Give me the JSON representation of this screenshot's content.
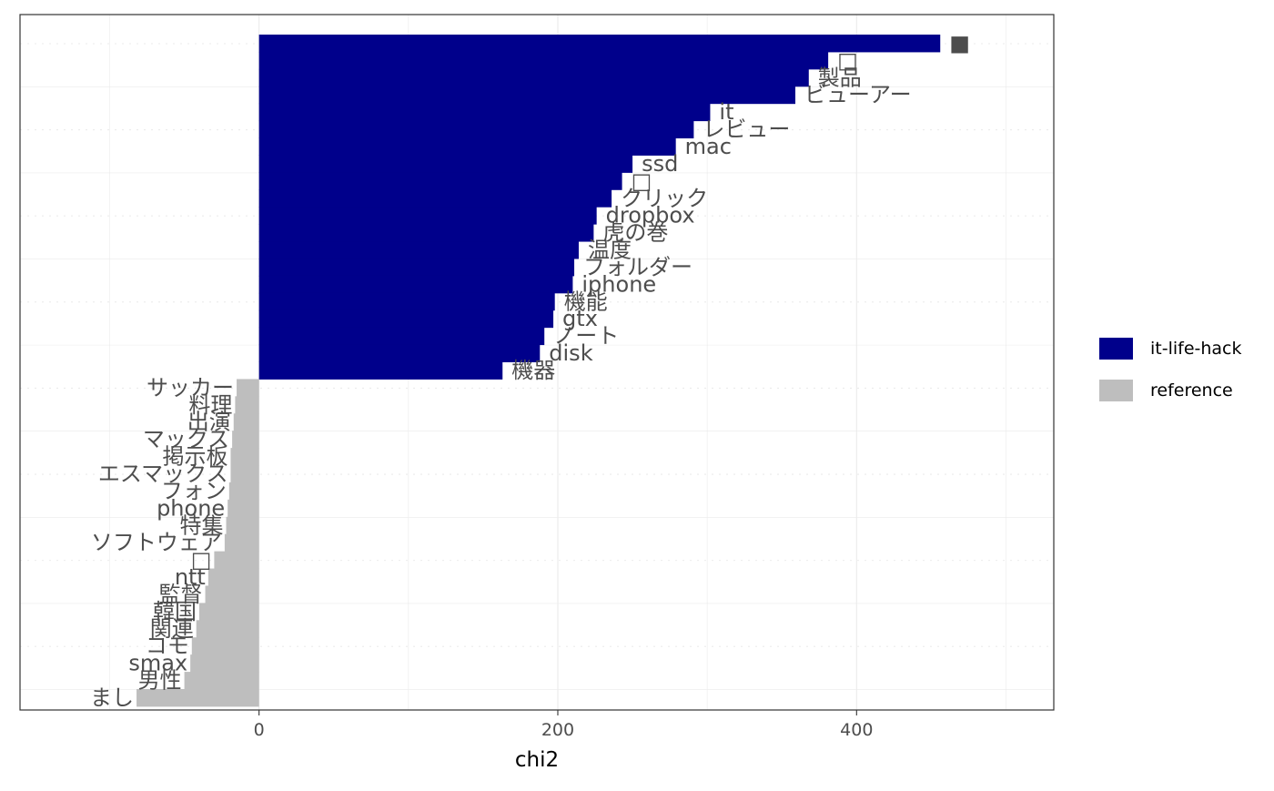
{
  "chart_data": {
    "type": "bar",
    "orientation": "horizontal",
    "title": "",
    "xlabel": "chi2",
    "ylabel": "",
    "xlim": [
      -160,
      532
    ],
    "x_ticks": [
      0,
      200,
      400
    ],
    "x_tick_labels": [
      "0",
      "200",
      "400"
    ],
    "grid": true,
    "legend_position": "right",
    "series": [
      {
        "name": "it-life-hack",
        "color": "#00008B",
        "labels": [
          "■",
          "□",
          "製品",
          "ビューアー",
          "it",
          "レビュー",
          "mac",
          "ssd",
          "□",
          "クリック",
          "dropbox",
          "虎の巻",
          "温度",
          "フォルダー",
          "iphone",
          "機能",
          "gtx",
          "ノート",
          "disk",
          "機器"
        ],
        "values": [
          456,
          381,
          368,
          359,
          302,
          291,
          279,
          250,
          243,
          236,
          226,
          224,
          214,
          211,
          210,
          198,
          197,
          191,
          188,
          163
        ]
      },
      {
        "name": "reference",
        "color": "#BEBEBE",
        "labels": [
          "サッカー",
          "料理",
          "出演",
          "マックス",
          "掲示板",
          "エスマックス",
          "フォン",
          "phone",
          "特集",
          "ソフトウェア",
          "□",
          "ntt",
          "監督",
          "韓国",
          "関連",
          "コモ",
          "smax",
          "男性",
          "まし"
        ],
        "values": [
          -15,
          -16,
          -17,
          -18,
          -19,
          -19,
          -20,
          -21,
          -22,
          -23,
          -30,
          -34,
          -36,
          -40,
          -42,
          -45,
          -46,
          -50,
          -82
        ]
      }
    ]
  }
}
